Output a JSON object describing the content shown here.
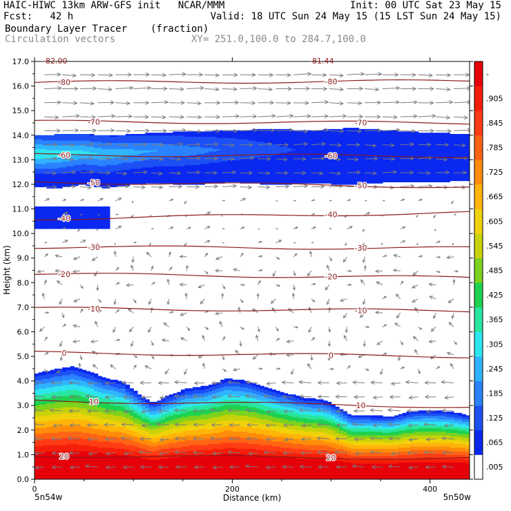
{
  "header": {
    "line1_left": "HAIC-HIWC 13km ARW-GFS init   NCAR/MMM",
    "line1_right": "Init: 00 UTC Sat 23 May 15",
    "line2_left": "Fcst:   42 h",
    "line2_right": "Valid: 18 UTC Sun 24 May 15 (15 LST Sun 24 May 15)",
    "line3_left": "Boundary Layer Tracer",
    "line3_units": "(fraction)",
    "line4_left": "Circulation vectors",
    "line4_right": "XY= 251.0,100.0 to 284.7,100.0"
  },
  "chart_data": {
    "type": "heatmap",
    "title": "Boundary Layer Tracer",
    "units": "(fraction)",
    "xlabel": "Distance (km)",
    "ylabel": "Height (km)",
    "xlim": [
      0,
      440
    ],
    "ylim": [
      0,
      17
    ],
    "x_ticks": [
      "0",
      "200",
      "400"
    ],
    "x_tick_values": [
      0,
      200,
      400
    ],
    "y_ticks": [
      "0.0",
      "1.0",
      "2.0",
      "3.0",
      "4.0",
      "5.0",
      "6.0",
      "7.0",
      "8.0",
      "9.0",
      "10.0",
      "11.0",
      "12.0",
      "13.0",
      "14.0",
      "15.0",
      "16.0",
      "17.0"
    ],
    "endpoint_left": "5n54w",
    "endpoint_right": "5n50w",
    "top_partial_labels": [
      "-82.00",
      "-81.44"
    ],
    "colorbar": {
      "labels": [
        ".005",
        ".065",
        ".125",
        ".185",
        ".245",
        ".305",
        ".365",
        ".425",
        ".485",
        ".545",
        ".605",
        ".665",
        ".725",
        ".785",
        ".845",
        ".905",
        "-"
      ],
      "colors": [
        "#ffffff",
        "#0a28f0",
        "#1d50f5",
        "#2a82ff",
        "#31b4ff",
        "#2ee6f0",
        "#28e6a0",
        "#1ed250",
        "#7dd21e",
        "#c8d20a",
        "#f0d20a",
        "#ffb40a",
        "#ff8c0a",
        "#ff6414",
        "#ff3c14",
        "#f51e0a",
        "#e6000a"
      ]
    },
    "tracer_lower_top_km": [
      [
        0,
        4.3
      ],
      [
        12,
        4.4
      ],
      [
        25,
        4.5
      ],
      [
        40,
        4.6
      ],
      [
        55,
        4.4
      ],
      [
        70,
        4.15
      ],
      [
        90,
        3.95
      ],
      [
        105,
        3.5
      ],
      [
        120,
        3.1
      ],
      [
        135,
        3.4
      ],
      [
        155,
        3.7
      ],
      [
        175,
        3.8
      ],
      [
        195,
        4.1
      ],
      [
        215,
        4.0
      ],
      [
        235,
        3.75
      ],
      [
        255,
        3.5
      ],
      [
        275,
        3.3
      ],
      [
        292,
        3.25
      ],
      [
        305,
        3.0
      ],
      [
        320,
        2.6
      ],
      [
        340,
        2.6
      ],
      [
        360,
        2.55
      ],
      [
        380,
        2.75
      ],
      [
        400,
        2.8
      ],
      [
        420,
        2.75
      ],
      [
        440,
        2.6
      ]
    ],
    "tracer_upper_band_km": {
      "bottom": [
        [
          0,
          11.9
        ],
        [
          25,
          11.85
        ],
        [
          50,
          12.0
        ],
        [
          70,
          11.85
        ],
        [
          90,
          11.95
        ],
        [
          120,
          12.05
        ],
        [
          160,
          12.0
        ],
        [
          200,
          12.1
        ],
        [
          240,
          12.0
        ],
        [
          280,
          12.05
        ],
        [
          320,
          12.0
        ],
        [
          360,
          12.1
        ],
        [
          400,
          12.1
        ],
        [
          440,
          12.15
        ]
      ],
      "top": [
        [
          0,
          14.0
        ],
        [
          40,
          14.05
        ],
        [
          80,
          14.0
        ],
        [
          120,
          14.1
        ],
        [
          160,
          14.15
        ],
        [
          200,
          14.2
        ],
        [
          240,
          14.25
        ],
        [
          280,
          14.2
        ],
        [
          320,
          14.3
        ],
        [
          360,
          14.2
        ],
        [
          400,
          14.1
        ],
        [
          440,
          14.05
        ]
      ],
      "core_max": 0.305
    },
    "tracer_lobe_km": {
      "x_range": [
        0,
        77
      ],
      "y_range": [
        10.2,
        11.1
      ]
    },
    "temperature_contours": [
      {
        "label": "-80",
        "y": [
          16.15,
          16.2
        ]
      },
      {
        "label": "-70",
        "y": [
          14.55,
          14.5
        ]
      },
      {
        "label": "-60",
        "y": [
          13.2,
          13.15
        ]
      },
      {
        "label": "-50",
        "y": [
          12.1,
          11.9
        ]
      },
      {
        "label": "-40",
        "y": [
          10.6,
          10.85
        ]
      },
      {
        "label": "-30",
        "y": [
          9.45,
          9.4
        ]
      },
      {
        "label": "-20",
        "y": [
          8.35,
          8.2
        ]
      },
      {
        "label": "-10",
        "y": [
          6.95,
          6.85
        ]
      },
      {
        "label": "0",
        "y": [
          5.15,
          5.0
        ]
      },
      {
        "label": "10",
        "y": [
          3.2,
          2.95
        ]
      },
      {
        "label": "20",
        "y": [
          0.95,
          0.85
        ]
      }
    ]
  }
}
